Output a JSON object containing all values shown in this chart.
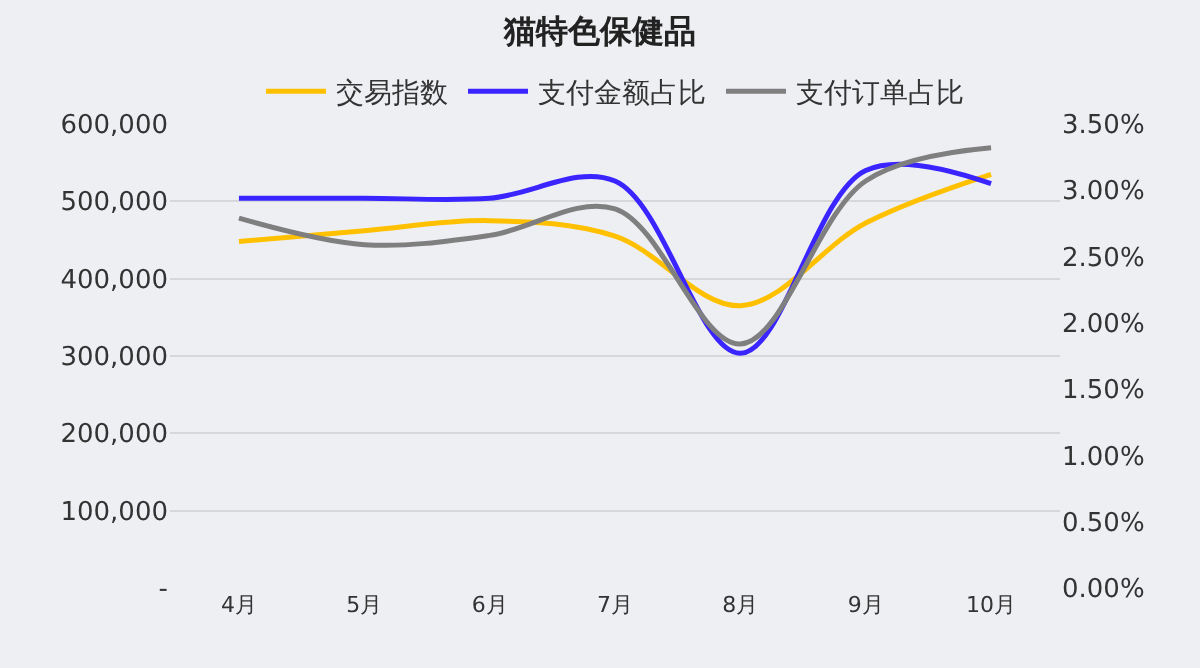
{
  "chart_data": {
    "type": "line",
    "title": "猫特色保健品",
    "categories": [
      "4月",
      "5月",
      "6月",
      "7月",
      "8月",
      "9月",
      "10月"
    ],
    "series": [
      {
        "name": "交易指数",
        "color": "#ffc000",
        "values": [
          448000,
          462000,
          475000,
          455000,
          365000,
          472000,
          535000
        ]
      },
      {
        "name": "支付金额占比",
        "color": "#3a24ff",
        "axis": "y2",
        "values": [
          2.94,
          2.94,
          2.94,
          3.07,
          1.77,
          3.15,
          3.05
        ]
      },
      {
        "name": "支付订单占比",
        "color": "#7f7f7f",
        "axis": "y2",
        "values": [
          2.79,
          2.59,
          2.66,
          2.86,
          1.84,
          3.07,
          3.32
        ]
      }
    ],
    "ylim": [
      0,
      600000
    ],
    "yticks": [
      {
        "value": 0,
        "label": "-"
      },
      {
        "value": 100000,
        "label": "100,000"
      },
      {
        "value": 200000,
        "label": "200,000"
      },
      {
        "value": 300000,
        "label": "300,000"
      },
      {
        "value": 400000,
        "label": "400,000"
      },
      {
        "value": 500000,
        "label": "500,000"
      },
      {
        "value": 600000,
        "label": "600,000"
      }
    ],
    "y2lim": [
      0,
      3.5
    ],
    "y2ticks": [
      {
        "value": 0,
        "label": "0.00%"
      },
      {
        "value": 0.5,
        "label": "0.50%"
      },
      {
        "value": 1,
        "label": "1.00%"
      },
      {
        "value": 1.5,
        "label": "1.50%"
      },
      {
        "value": 2,
        "label": "2.00%"
      },
      {
        "value": 2.5,
        "label": "2.50%"
      },
      {
        "value": 3,
        "label": "3.00%"
      },
      {
        "value": 3.5,
        "label": "3.50%"
      }
    ],
    "grid": "y",
    "legend": "top",
    "marker": "none",
    "line_style": "solid"
  }
}
